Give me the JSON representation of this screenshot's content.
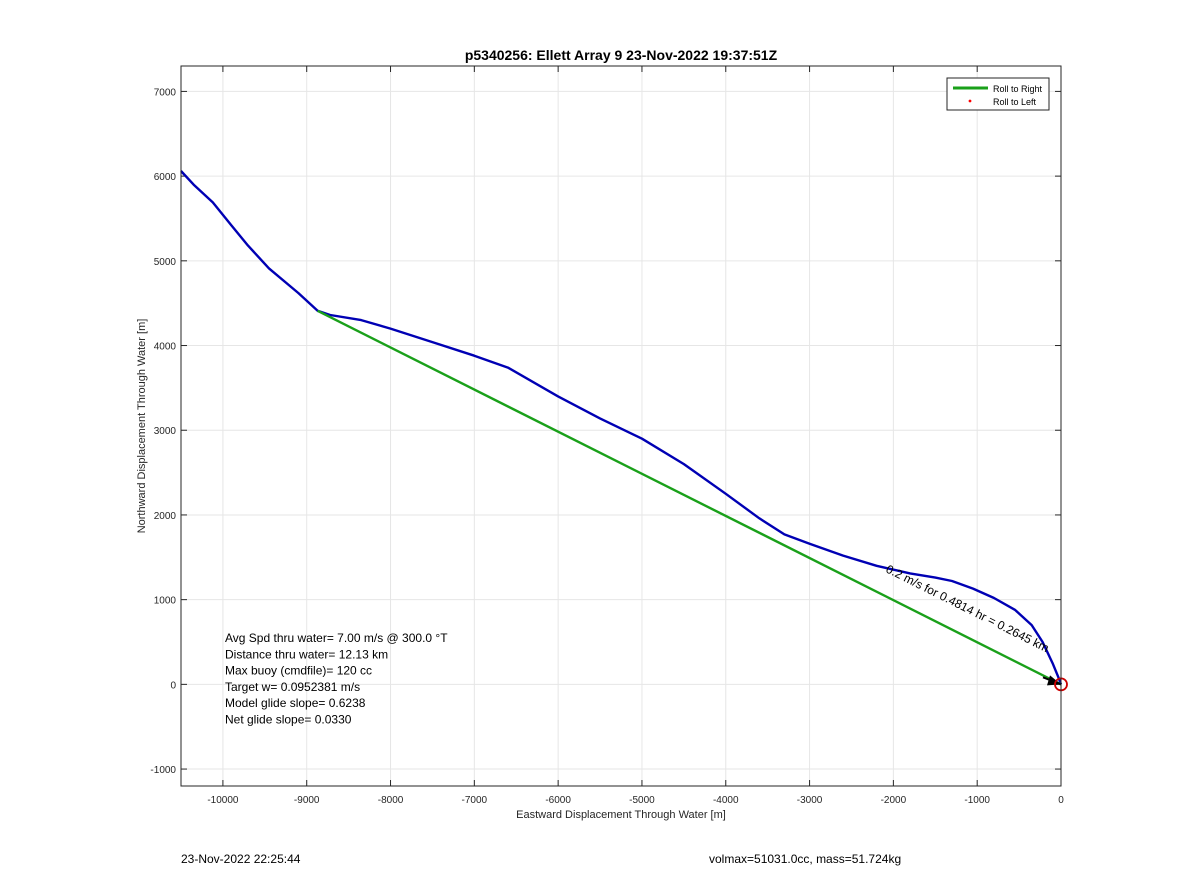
{
  "chart_data": {
    "type": "line",
    "title": "p5340256: Ellett Array 9 23-Nov-2022 19:37:51Z",
    "xlabel": "Eastward Displacement Through Water [m]",
    "ylabel": "Northward Displacement Through Water [m]",
    "xlim": [
      -10500,
      0
    ],
    "ylim": [
      -1200,
      7300
    ],
    "xticks": [
      -10000,
      -9000,
      -8000,
      -7000,
      -6000,
      -5000,
      -4000,
      -3000,
      -2000,
      -1000,
      0
    ],
    "yticks": [
      -1000,
      0,
      1000,
      2000,
      3000,
      4000,
      5000,
      6000,
      7000
    ],
    "grid": true,
    "legend_position": "top-right",
    "series": [
      {
        "name": "Roll to Right",
        "color": "#1aa01a",
        "style": "line",
        "x": [
          -8870,
          0
        ],
        "y": [
          4410,
          0
        ]
      },
      {
        "name": "Roll to Left",
        "color": "#ff0000",
        "style": "marker",
        "x": [],
        "y": []
      },
      {
        "color": "#0000b4",
        "style": "line",
        "x": [
          -10500,
          -10350,
          -10120,
          -9900,
          -9700,
          -9450,
          -9100,
          -8870,
          -8720,
          -8350,
          -8000,
          -7500,
          -7000,
          -6600,
          -6000,
          -5500,
          -5000,
          -4500,
          -4000,
          -3600,
          -3300,
          -3000,
          -2600,
          -2200,
          -1800,
          -1500,
          -1300,
          -1050,
          -800,
          -550,
          -350,
          -220,
          -100,
          -30,
          0
        ],
        "y": [
          6060,
          5900,
          5690,
          5420,
          5180,
          4910,
          4620,
          4410,
          4360,
          4300,
          4200,
          4040,
          3880,
          3740,
          3400,
          3140,
          2900,
          2600,
          2250,
          1960,
          1770,
          1660,
          1520,
          1400,
          1310,
          1260,
          1220,
          1130,
          1020,
          880,
          700,
          500,
          250,
          80,
          0
        ]
      }
    ],
    "annotations": [
      {
        "text": "0.2 m/s for 0.4814 hr = 0.2645 km",
        "x": -2100,
        "y": 1330,
        "rotation_deg": 26.6,
        "color": "#000000"
      }
    ],
    "marker": {
      "type": "circle",
      "x": 0,
      "y": 0,
      "color": "#cc0000"
    },
    "info_box": [
      "Avg Spd thru water=  7.00 m/s @ 300.0 °T",
      "Distance thru water= 12.13 km",
      "Max buoy (cmdfile)= 120 cc",
      "Target w= 0.0952381 m/s",
      "Model glide slope= 0.6238",
      "Net glide slope= 0.0330"
    ]
  },
  "footer": {
    "left": "23-Nov-2022 22:25:44",
    "right": "volmax=51031.0cc, mass=51.724kg"
  }
}
